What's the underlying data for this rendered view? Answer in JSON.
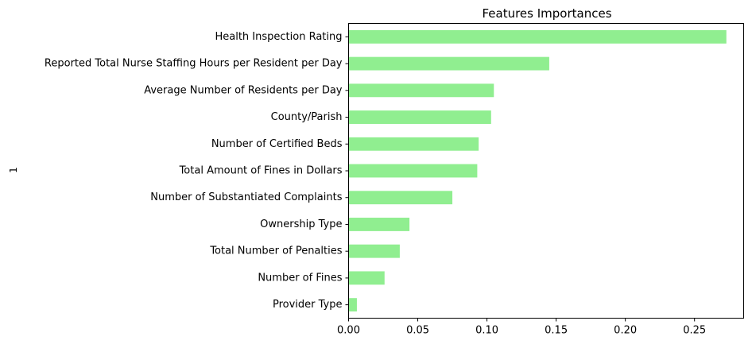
{
  "chart_data": {
    "type": "bar",
    "orientation": "horizontal",
    "title": "Features Importances",
    "xlabel": "",
    "ylabel": "1",
    "categories": [
      "Health Inspection Rating",
      "Reported Total Nurse Staffing Hours per Resident per Day",
      "Average Number of Residents per Day",
      "County/Parish",
      "Number of Certified Beds",
      "Total Amount of Fines in Dollars",
      "Number of Substantiated Complaints",
      "Ownership Type",
      "Total Number of Penalties",
      "Number of Fines",
      "Provider Type"
    ],
    "values": [
      0.273,
      0.145,
      0.105,
      0.103,
      0.094,
      0.093,
      0.075,
      0.044,
      0.037,
      0.026,
      0.006
    ],
    "xlim": [
      0,
      0.2855
    ],
    "xticks": [
      0.0,
      0.05,
      0.1,
      0.15,
      0.2,
      0.25
    ],
    "xtick_labels": [
      "0.00",
      "0.05",
      "0.10",
      "0.15",
      "0.20",
      "0.25"
    ],
    "bar_color": "#90ee90",
    "grid": false,
    "legend": false
  }
}
